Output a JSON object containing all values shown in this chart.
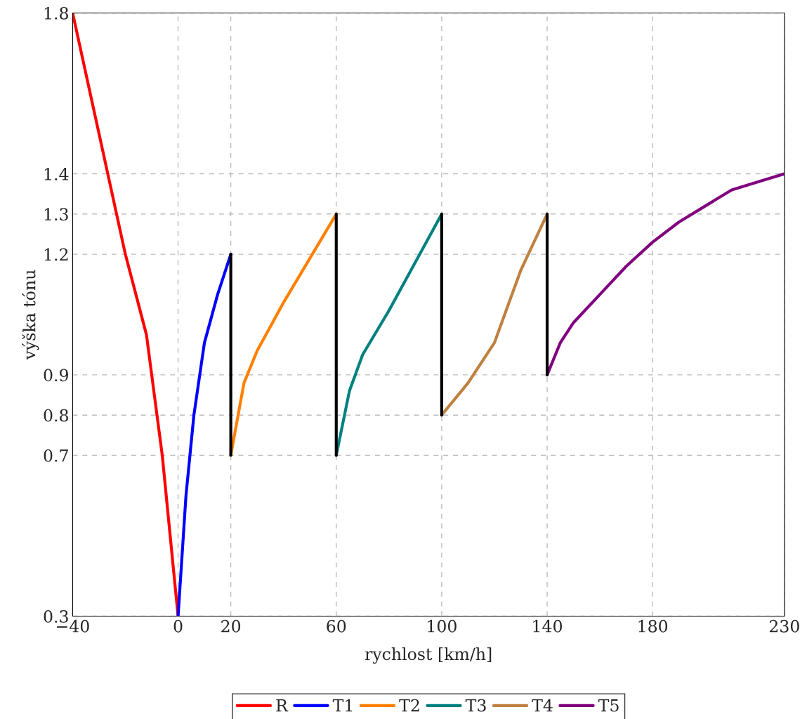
{
  "chart_data": {
    "type": "line",
    "xlabel": "rychlost [km/h]",
    "ylabel": "výška tónu",
    "xlim": [
      -40,
      230
    ],
    "ylim": [
      0.3,
      1.8
    ],
    "xticks": [
      {
        "value": -40,
        "label": "−40"
      },
      0,
      20,
      60,
      100,
      140,
      180,
      230
    ],
    "yticks": [
      0.3,
      0.7,
      0.8,
      0.9,
      1.2,
      1.3,
      1.4,
      1.8
    ],
    "grid": true,
    "legend": "bottom",
    "line_style": "solid",
    "marker": "none",
    "series": [
      {
        "name": "R",
        "color": "#ff0000",
        "x": [
          -40,
          -20,
          -12,
          -10,
          -6,
          -3,
          0
        ],
        "values": [
          1.8,
          1.2,
          1.0,
          0.9,
          0.7,
          0.5,
          0.3
        ]
      },
      {
        "name": "T1",
        "color": "#0000ff",
        "x": [
          0,
          3,
          6,
          10,
          15,
          20
        ],
        "values": [
          0.3,
          0.6,
          0.8,
          0.98,
          1.1,
          1.2
        ]
      },
      {
        "color": "#000000",
        "x": [
          20,
          20
        ],
        "values": [
          1.2,
          0.7
        ]
      },
      {
        "name": "T2",
        "color": "#ff8000",
        "x": [
          20,
          25,
          30,
          35,
          40,
          50,
          60
        ],
        "values": [
          0.7,
          0.88,
          0.96,
          1.02,
          1.08,
          1.19,
          1.3
        ]
      },
      {
        "color": "#000000",
        "x": [
          60,
          60
        ],
        "values": [
          1.3,
          0.7
        ]
      },
      {
        "name": "T3",
        "color": "#008080",
        "x": [
          60,
          65,
          70,
          80,
          90,
          100
        ],
        "values": [
          0.7,
          0.86,
          0.95,
          1.06,
          1.18,
          1.3
        ]
      },
      {
        "color": "#000000",
        "x": [
          100,
          100
        ],
        "values": [
          1.3,
          0.8
        ]
      },
      {
        "name": "T4",
        "color": "#bf8040",
        "x": [
          100,
          110,
          120,
          125,
          130,
          140
        ],
        "values": [
          0.8,
          0.88,
          0.98,
          1.07,
          1.16,
          1.3
        ]
      },
      {
        "color": "#000000",
        "x": [
          140,
          140
        ],
        "values": [
          1.3,
          0.9
        ]
      },
      {
        "name": "T5",
        "color": "#800080",
        "x": [
          140,
          145,
          150,
          160,
          170,
          180,
          190,
          200,
          210,
          220,
          230
        ],
        "values": [
          0.9,
          0.98,
          1.03,
          1.1,
          1.17,
          1.23,
          1.28,
          1.32,
          1.36,
          1.38,
          1.4
        ]
      }
    ]
  }
}
